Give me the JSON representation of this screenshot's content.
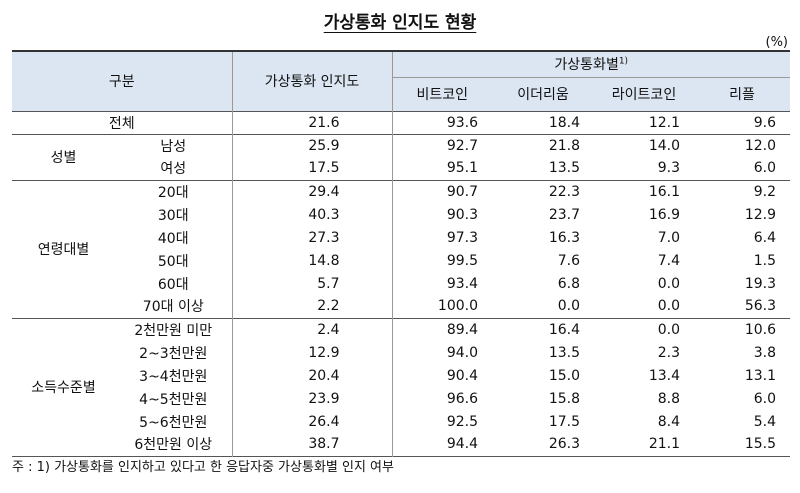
{
  "title": "가상통화 인지도 현황",
  "unit": "(%)",
  "header": {
    "category": "구분",
    "awareness": "가상통화 인지도",
    "by_currency": "가상통화별",
    "by_currency_sup": "1)",
    "currencies": [
      "비트코인",
      "이더리움",
      "라이트코인",
      "리플"
    ]
  },
  "total": {
    "label": "전체",
    "values": [
      "21.6",
      "93.6",
      "18.4",
      "12.1",
      "9.6"
    ]
  },
  "groups": [
    {
      "name": "성별",
      "rows": [
        {
          "label": "남성",
          "values": [
            "25.9",
            "92.7",
            "21.8",
            "14.0",
            "12.0"
          ]
        },
        {
          "label": "여성",
          "values": [
            "17.5",
            "95.1",
            "13.5",
            "9.3",
            "6.0"
          ]
        }
      ]
    },
    {
      "name": "연령대별",
      "rows": [
        {
          "label": "20대",
          "values": [
            "29.4",
            "90.7",
            "22.3",
            "16.1",
            "9.2"
          ]
        },
        {
          "label": "30대",
          "values": [
            "40.3",
            "90.3",
            "23.7",
            "16.9",
            "12.9"
          ]
        },
        {
          "label": "40대",
          "values": [
            "27.3",
            "97.3",
            "16.3",
            "7.0",
            "6.4"
          ]
        },
        {
          "label": "50대",
          "values": [
            "14.8",
            "99.5",
            "7.6",
            "7.4",
            "1.5"
          ]
        },
        {
          "label": "60대",
          "values": [
            "5.7",
            "93.4",
            "6.8",
            "0.0",
            "19.3"
          ]
        },
        {
          "label": "70대 이상",
          "values": [
            "2.2",
            "100.0",
            "0.0",
            "0.0",
            "56.3"
          ]
        }
      ]
    },
    {
      "name": "소득수준별",
      "rows": [
        {
          "label": "2천만원 미만",
          "values": [
            "2.4",
            "89.4",
            "16.4",
            "0.0",
            "10.6"
          ]
        },
        {
          "label": "2~3천만원",
          "values": [
            "12.9",
            "94.0",
            "13.5",
            "2.3",
            "3.8"
          ]
        },
        {
          "label": "3~4천만원",
          "values": [
            "20.4",
            "90.4",
            "15.0",
            "13.4",
            "13.1"
          ]
        },
        {
          "label": "4~5천만원",
          "values": [
            "23.9",
            "96.6",
            "15.8",
            "8.8",
            "6.0"
          ]
        },
        {
          "label": "5~6천만원",
          "values": [
            "26.4",
            "92.5",
            "17.5",
            "8.4",
            "5.4"
          ]
        },
        {
          "label": "6천만원 이상",
          "values": [
            "38.7",
            "94.4",
            "26.3",
            "21.1",
            "15.5"
          ]
        }
      ]
    }
  ],
  "note": "주 : 1) 가상통화를 인지하고 있다고 한 응답자중 가상통화별 인지 여부"
}
